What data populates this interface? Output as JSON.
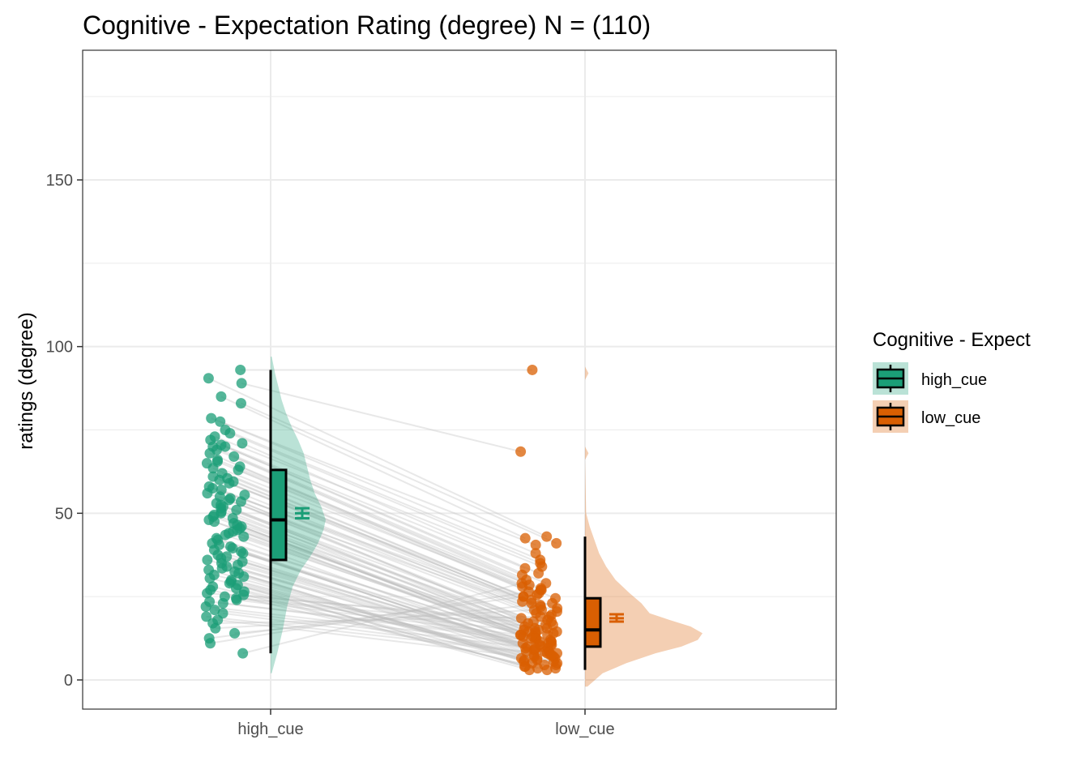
{
  "chart_data": {
    "type": "raincloud",
    "title": "Cognitive - Expectation Rating (degree) N = (110)",
    "ylabel": "ratings (degree)",
    "xlabel": "",
    "ylim": [
      -8,
      188
    ],
    "yticks": [
      "0",
      "50",
      "100",
      "150"
    ],
    "grid": true,
    "legend": {
      "title": "Cognitive - Expect",
      "placement": "right",
      "entries": [
        "high_cue",
        "low_cue"
      ]
    },
    "categories": [
      "high_cue",
      "low_cue"
    ],
    "colors": {
      "high_cue": "#1B9E77",
      "low_cue": "#D95F02",
      "lines": "#bdbdbd",
      "grid": "#ebebeb"
    },
    "series": [
      {
        "name": "high_cue",
        "box": {
          "min": 8,
          "q1": 36,
          "median": 48,
          "q3": 63,
          "max": 93
        },
        "mean": 50,
        "sem_low": 48.5,
        "sem_high": 51.5,
        "points": [
          93,
          89,
          90.5,
          85,
          83,
          78.5,
          77.5,
          75,
          74,
          73,
          72,
          71,
          70.5,
          70,
          70,
          69,
          68,
          67,
          66,
          65.5,
          65,
          64,
          63.5,
          63,
          62,
          61,
          60.5,
          60,
          59.5,
          59,
          58,
          57.5,
          57,
          56,
          55.5,
          55,
          54.5,
          54,
          53.5,
          53,
          52.5,
          52,
          51.5,
          51,
          50.5,
          50,
          49.5,
          49,
          48.5,
          48,
          47.5,
          47,
          46.5,
          46,
          45.5,
          45,
          44.5,
          44,
          43.5,
          43,
          42.5,
          42,
          41,
          40.5,
          40,
          39.5,
          39,
          38.5,
          38,
          37.5,
          37,
          36.5,
          36,
          35.5,
          35,
          34.5,
          34,
          33.5,
          33,
          32.5,
          32,
          31.5,
          31,
          30.5,
          30,
          29.5,
          29,
          28.5,
          28,
          27.5,
          27,
          26.5,
          26,
          25.5,
          25,
          24.5,
          24,
          23.5,
          23,
          22,
          21,
          20,
          19,
          18,
          17,
          15.5,
          14,
          12.5,
          11,
          8
        ],
        "paired": [
          93,
          89,
          90.5,
          85,
          83,
          78.5,
          77.5,
          75,
          74,
          73,
          72,
          71,
          70.5,
          70,
          70,
          69,
          68,
          67,
          66,
          65.5,
          65,
          64,
          63.5,
          63,
          62,
          61,
          60.5,
          60,
          59.5,
          59,
          58,
          57.5,
          57,
          56,
          55.5,
          55,
          54.5,
          54,
          53.5,
          53,
          52.5,
          52,
          51.5,
          51,
          50.5,
          50,
          49.5,
          49,
          48.5,
          48,
          47.5,
          47,
          46.5,
          46,
          45.5,
          45,
          44.5,
          44,
          43.5,
          43,
          42.5,
          42,
          41,
          40.5,
          40,
          39.5,
          39,
          38.5,
          38,
          37.5,
          37,
          36.5,
          36,
          35.5,
          35,
          34.5,
          34,
          33.5,
          33,
          32.5,
          32,
          31.5,
          31,
          30.5,
          30,
          29.5,
          29,
          28.5,
          28,
          27.5,
          27,
          26.5,
          26,
          25.5,
          25,
          24.5,
          24,
          23.5,
          23,
          22,
          21,
          20,
          19,
          18,
          17,
          15.5,
          14,
          12.5,
          11,
          8
        ]
      },
      {
        "name": "low_cue",
        "box": {
          "min": 3,
          "q1": 10,
          "median": 15,
          "q3": 24.5,
          "max": 43
        },
        "mean": 18.5,
        "sem_low": 17.5,
        "sem_high": 19.7,
        "points": [
          93,
          68.5,
          43,
          42.5,
          41,
          40.5,
          38,
          36,
          35,
          34,
          33.5,
          32,
          31.5,
          30,
          29,
          28.5,
          28,
          27.5,
          27,
          26.5,
          26,
          25.5,
          25,
          24.5,
          24,
          23.5,
          23,
          22.5,
          22,
          21.5,
          21,
          20.5,
          20,
          19.5,
          19,
          18.5,
          18,
          17.5,
          17,
          16.5,
          16,
          15.5,
          15,
          15,
          14.5,
          14.5,
          14,
          14,
          13.5,
          13.5,
          13,
          13,
          12.5,
          12.5,
          12,
          12,
          11.5,
          11.5,
          11,
          11,
          10.5,
          10.5,
          10,
          10,
          9.5,
          9.5,
          9,
          9,
          8.5,
          8.5,
          8,
          8,
          7.5,
          7.5,
          7,
          7,
          6.5,
          6.5,
          6,
          6,
          5.5,
          5.5,
          5,
          5,
          4.5,
          4.5,
          4,
          4,
          3.5,
          3.5,
          3,
          3,
          17.5,
          16.5,
          15.5,
          14.5,
          13.5,
          12.5,
          11.5,
          10.5,
          9.5,
          8.5,
          7.5,
          6.5,
          19,
          21,
          23,
          25,
          27,
          29
        ]
      }
    ],
    "density": {
      "high_cue": [
        [
          2,
          0.02
        ],
        [
          8,
          0.12
        ],
        [
          15,
          0.22
        ],
        [
          22,
          0.3
        ],
        [
          28,
          0.4
        ],
        [
          33,
          0.55
        ],
        [
          37,
          0.72
        ],
        [
          41,
          0.86
        ],
        [
          45,
          0.96
        ],
        [
          48,
          1.0
        ],
        [
          52,
          0.92
        ],
        [
          56,
          0.8
        ],
        [
          60,
          0.72
        ],
        [
          64,
          0.66
        ],
        [
          68,
          0.6
        ],
        [
          72,
          0.5
        ],
        [
          76,
          0.38
        ],
        [
          80,
          0.28
        ],
        [
          84,
          0.2
        ],
        [
          88,
          0.14
        ],
        [
          92,
          0.08
        ],
        [
          97,
          0.02
        ]
      ],
      "low_cue": [
        [
          -2,
          0.02
        ],
        [
          2,
          0.15
        ],
        [
          5,
          0.35
        ],
        [
          8,
          0.6
        ],
        [
          10,
          0.82
        ],
        [
          12,
          0.96
        ],
        [
          14,
          1.0
        ],
        [
          16,
          0.9
        ],
        [
          18,
          0.72
        ],
        [
          20,
          0.55
        ],
        [
          23,
          0.48
        ],
        [
          26,
          0.38
        ],
        [
          30,
          0.26
        ],
        [
          34,
          0.18
        ],
        [
          38,
          0.12
        ],
        [
          42,
          0.08
        ],
        [
          46,
          0.04
        ],
        [
          50,
          0.01
        ],
        [
          66,
          0.0
        ],
        [
          68,
          0.03
        ],
        [
          70,
          0.0
        ],
        [
          90,
          0.0
        ],
        [
          92,
          0.03
        ],
        [
          94,
          0.0
        ]
      ]
    }
  }
}
